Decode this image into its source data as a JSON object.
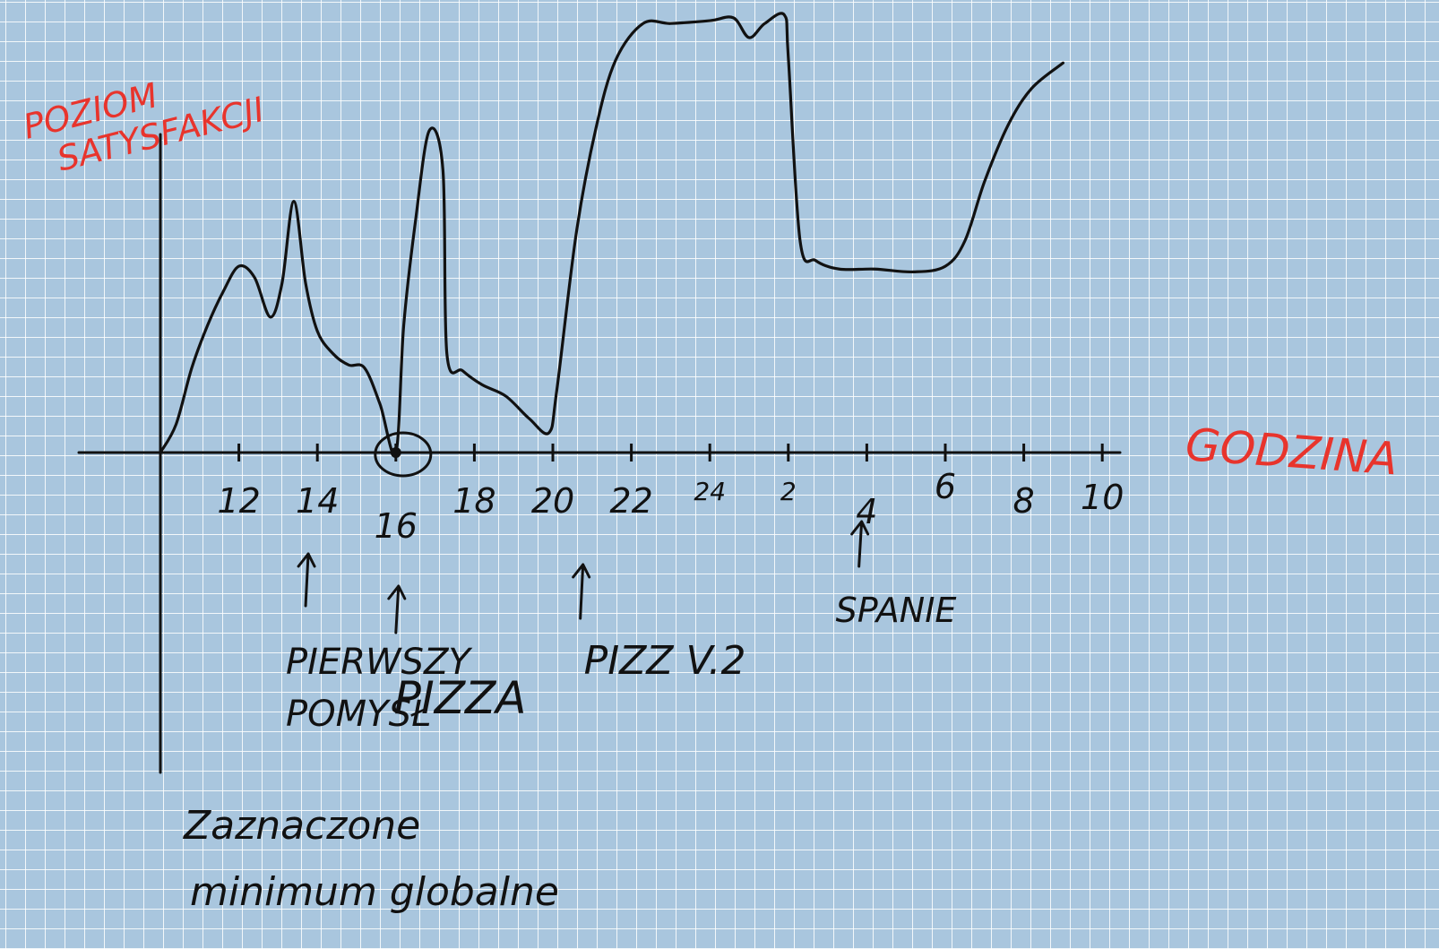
{
  "chart_data": {
    "type": "line",
    "title": "",
    "ylabel": "POZIOM SATYSFAKCJI",
    "xlabel": "GODZINA",
    "x_ticks": [
      "12",
      "14",
      "16",
      "18",
      "20",
      "22",
      "24",
      "2",
      "4",
      "6",
      "8",
      "10"
    ],
    "y_axis_scale": "none",
    "grid": "paper-grid",
    "series": [
      {
        "values": [
          [
            10.0,
            0.0
          ],
          [
            10.4,
            0.1
          ],
          [
            10.8,
            0.3
          ],
          [
            11.2,
            0.45
          ],
          [
            11.6,
            0.57
          ],
          [
            12.0,
            0.66
          ],
          [
            12.4,
            0.62
          ],
          [
            12.8,
            0.48
          ],
          [
            13.1,
            0.6
          ],
          [
            13.4,
            0.89
          ],
          [
            13.7,
            0.6
          ],
          [
            14.0,
            0.43
          ],
          [
            14.4,
            0.35
          ],
          [
            14.8,
            0.31
          ],
          [
            15.2,
            0.3
          ],
          [
            15.6,
            0.17
          ],
          [
            16.0,
            0.0
          ],
          [
            16.2,
            0.45
          ],
          [
            16.5,
            0.82
          ],
          [
            16.85,
            1.14
          ],
          [
            17.2,
            1.0
          ],
          [
            17.3,
            0.35
          ],
          [
            17.7,
            0.29
          ],
          [
            18.2,
            0.24
          ],
          [
            18.8,
            0.2
          ],
          [
            19.4,
            0.12
          ],
          [
            19.9,
            0.07
          ],
          [
            20.1,
            0.22
          ],
          [
            20.6,
            0.78
          ],
          [
            21.1,
            1.15
          ],
          [
            21.6,
            1.39
          ],
          [
            22.3,
            1.52
          ],
          [
            23.0,
            1.52
          ],
          [
            24.0,
            1.53
          ],
          [
            24.6,
            1.54
          ],
          [
            25.0,
            1.47
          ],
          [
            25.4,
            1.52
          ],
          [
            25.9,
            1.55
          ],
          [
            26.0,
            1.4
          ],
          [
            26.3,
            0.75
          ],
          [
            26.7,
            0.68
          ],
          [
            27.3,
            0.65
          ],
          [
            28.2,
            0.65
          ],
          [
            29.2,
            0.64
          ],
          [
            30.0,
            0.66
          ],
          [
            30.5,
            0.75
          ],
          [
            31.0,
            0.96
          ],
          [
            31.6,
            1.16
          ],
          [
            32.2,
            1.29
          ],
          [
            33.0,
            1.38
          ]
        ]
      }
    ],
    "highlight_point": {
      "x": 16,
      "y": 0
    },
    "annotations": [
      {
        "x": 13.7,
        "lines": [
          "PIERWSZY",
          "POMYSŁ"
        ]
      },
      {
        "x": 16.0,
        "lines": [
          "PIZZA"
        ]
      },
      {
        "x": 20.7,
        "lines": [
          "PIZZ V.2"
        ]
      },
      {
        "x": 27.8,
        "lines": [
          "SPANIE"
        ]
      }
    ],
    "note_lines": [
      "Zaznaczone",
      "minimum globalne"
    ],
    "colors": {
      "paper": "#a9c6de",
      "grid": "#ffffff",
      "ink": "#111111",
      "label_red": "#e8342c"
    }
  }
}
